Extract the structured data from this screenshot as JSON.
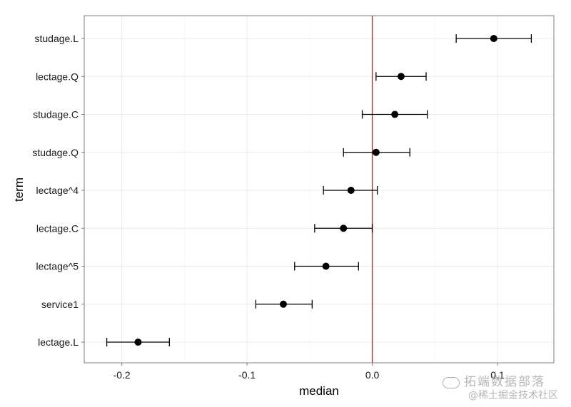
{
  "chart_data": {
    "type": "scatter",
    "subtype": "point-with-errorbars",
    "xlabel": "median",
    "ylabel": "term",
    "xlim": [
      -0.23,
      0.145
    ],
    "x_ticks": [
      {
        "value": -0.2,
        "label": "-0.2"
      },
      {
        "value": -0.1,
        "label": "-0.1"
      },
      {
        "value": 0.0,
        "label": "0.0"
      },
      {
        "value": 0.1,
        "label": "0.1"
      }
    ],
    "reference_line": {
      "x": 0.0,
      "color": "#cc2222"
    },
    "grid": true,
    "colors": {
      "point": "#000000",
      "panel_border": "#7f7f7f",
      "grid": "#ebebeb"
    },
    "terms": [
      {
        "term": "studage.L",
        "median": 0.097,
        "low": 0.067,
        "high": 0.127
      },
      {
        "term": "lectage.Q",
        "median": 0.023,
        "low": 0.003,
        "high": 0.043
      },
      {
        "term": "studage.C",
        "median": 0.018,
        "low": -0.008,
        "high": 0.044
      },
      {
        "term": "studage.Q",
        "median": 0.003,
        "low": -0.023,
        "high": 0.03
      },
      {
        "term": "lectage^4",
        "median": -0.017,
        "low": -0.039,
        "high": 0.004
      },
      {
        "term": "lectage.C",
        "median": -0.023,
        "low": -0.046,
        "high": 0.0
      },
      {
        "term": "lectage^5",
        "median": -0.037,
        "low": -0.062,
        "high": -0.011
      },
      {
        "term": "service1",
        "median": -0.071,
        "low": -0.093,
        "high": -0.048
      },
      {
        "term": "lectage.L",
        "median": -0.187,
        "low": -0.212,
        "high": -0.162
      }
    ]
  },
  "watermark": {
    "brand": "拓端数据部落",
    "sub": "@稀土掘金技术社区"
  }
}
